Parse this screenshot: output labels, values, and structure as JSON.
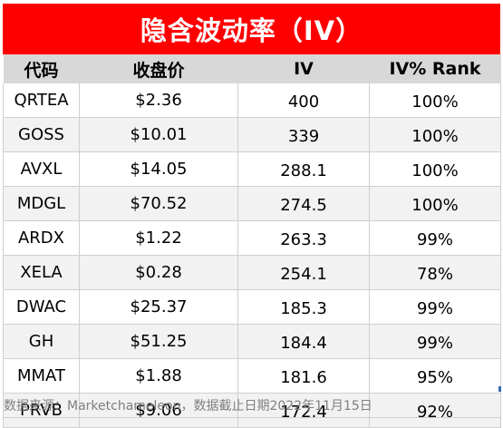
{
  "title": "隐含波动率（IV）",
  "columns": [
    "代码",
    "收盘价",
    "IV",
    "IV% Rank"
  ],
  "rows": [
    [
      "QRTEA",
      "$2.36",
      "400",
      "100%"
    ],
    [
      "GOSS",
      "$10.01",
      "339",
      "100%"
    ],
    [
      "AVXL",
      "$14.05",
      "288.1",
      "100%"
    ],
    [
      "MDGL",
      "$70.52",
      "274.5",
      "100%"
    ],
    [
      "ARDX",
      "$1.22",
      "263.3",
      "99%"
    ],
    [
      "XELA",
      "$0.28",
      "254.1",
      "78%"
    ],
    [
      "DWAC",
      "$25.37",
      "185.3",
      "99%"
    ],
    [
      "GH",
      "$51.25",
      "184.4",
      "99%"
    ],
    [
      "MMAT",
      "$1.88",
      "181.6",
      "95%"
    ],
    [
      "PRVB",
      "$9.06",
      "172.4",
      "92%"
    ]
  ],
  "footnote": "数据来源：Marketchameleon，数据截止日期2022年11月15日",
  "colors": {
    "title_bg": "#fe0000",
    "title_text": "#ffffff",
    "header_bg": "#d8d8d8",
    "zebra_bg": "#f2f2f2",
    "footnote_text": "#7f7f7f"
  }
}
